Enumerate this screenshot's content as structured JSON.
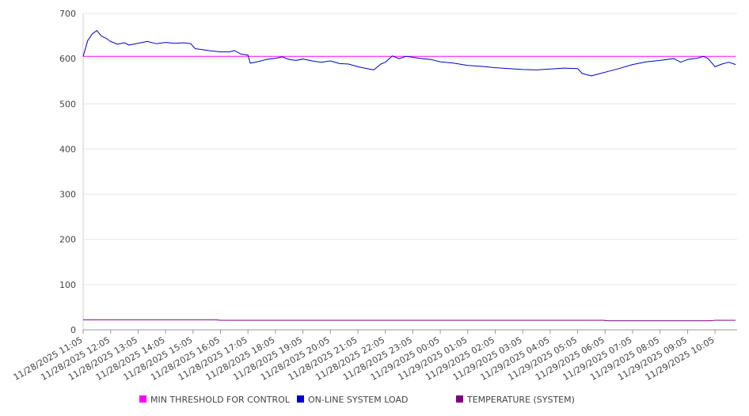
{
  "chart_data": {
    "type": "line",
    "title": "",
    "xlabel": "",
    "ylabel": "",
    "ylim": [
      0,
      700
    ],
    "yticks": [
      0,
      100,
      200,
      300,
      400,
      500,
      600,
      700
    ],
    "grid": true,
    "legend_position": "bottom",
    "x_tick_labels": [
      "11/28/2025 11:05",
      "11/28/2025 12:05",
      "11/28/2025 13:05",
      "11/28/2025 14:05",
      "11/28/2025 15:05",
      "11/28/2025 16:05",
      "11/28/2025 17:05",
      "11/28/2025 18:05",
      "11/28/2025 19:05",
      "11/28/2025 20:05",
      "11/28/2025 21:05",
      "11/28/2025 22:05",
      "11/28/2025 23:05",
      "11/29/2025 00:05",
      "11/29/2025 01:05",
      "11/29/2025 02:05",
      "11/29/2025 03:05",
      "11/29/2025 04:05",
      "11/29/2025 05:05",
      "11/29/2025 06:05",
      "11/29/2025 07:05",
      "11/29/2025 08:05",
      "11/29/2025 09:05",
      "11/29/2025 10:05"
    ],
    "series": [
      {
        "name": "MIN THRESHOLD FOR CONTROL",
        "color": "#ff00ff",
        "points": [
          [
            "11/28/2025 11:05",
            605
          ],
          [
            "11/29/2025 10:50",
            605
          ]
        ]
      },
      {
        "name": "ON-LINE SYSTEM LOAD",
        "color": "#0000cc",
        "points": [
          [
            "11/28/2025 11:05",
            605
          ],
          [
            "11/28/2025 11:15",
            640
          ],
          [
            "11/28/2025 11:25",
            655
          ],
          [
            "11/28/2025 11:35",
            662
          ],
          [
            "11/28/2025 11:45",
            650
          ],
          [
            "11/28/2025 11:55",
            645
          ],
          [
            "11/28/2025 12:05",
            638
          ],
          [
            "11/28/2025 12:20",
            632
          ],
          [
            "11/28/2025 12:35",
            635
          ],
          [
            "11/28/2025 12:45",
            630
          ],
          [
            "11/28/2025 13:05",
            634
          ],
          [
            "11/28/2025 13:25",
            638
          ],
          [
            "11/28/2025 13:45",
            633
          ],
          [
            "11/28/2025 14:05",
            636
          ],
          [
            "11/28/2025 14:25",
            634
          ],
          [
            "11/28/2025 14:45",
            635
          ],
          [
            "11/28/2025 15:00",
            633
          ],
          [
            "11/28/2025 15:10",
            622
          ],
          [
            "11/28/2025 15:25",
            620
          ],
          [
            "11/28/2025 15:45",
            617
          ],
          [
            "11/28/2025 16:05",
            615
          ],
          [
            "11/28/2025 16:25",
            615
          ],
          [
            "11/28/2025 16:35",
            618
          ],
          [
            "11/28/2025 16:50",
            610
          ],
          [
            "11/28/2025 17:05",
            608
          ],
          [
            "11/28/2025 17:10",
            590
          ],
          [
            "11/28/2025 17:25",
            593
          ],
          [
            "11/28/2025 17:45",
            598
          ],
          [
            "11/28/2025 18:05",
            601
          ],
          [
            "11/28/2025 18:20",
            604
          ],
          [
            "11/28/2025 18:35",
            598
          ],
          [
            "11/28/2025 18:50",
            596
          ],
          [
            "11/28/2025 19:05",
            599
          ],
          [
            "11/28/2025 19:25",
            595
          ],
          [
            "11/28/2025 19:45",
            592
          ],
          [
            "11/28/2025 20:05",
            595
          ],
          [
            "11/28/2025 20:25",
            589
          ],
          [
            "11/28/2025 20:45",
            588
          ],
          [
            "11/28/2025 21:05",
            582
          ],
          [
            "11/28/2025 21:25",
            578
          ],
          [
            "11/28/2025 21:40",
            575
          ],
          [
            "11/28/2025 21:55",
            588
          ],
          [
            "11/28/2025 22:05",
            592
          ],
          [
            "11/28/2025 22:20",
            606
          ],
          [
            "11/28/2025 22:35",
            600
          ],
          [
            "11/28/2025 22:50",
            605
          ],
          [
            "11/28/2025 23:05",
            603
          ],
          [
            "11/28/2025 23:25",
            600
          ],
          [
            "11/28/2025 23:45",
            598
          ],
          [
            "11/29/2025 00:05",
            593
          ],
          [
            "11/29/2025 00:35",
            590
          ],
          [
            "11/29/2025 01:05",
            585
          ],
          [
            "11/29/2025 01:35",
            583
          ],
          [
            "11/29/2025 02:05",
            580
          ],
          [
            "11/29/2025 02:35",
            578
          ],
          [
            "11/29/2025 03:05",
            576
          ],
          [
            "11/29/2025 03:35",
            575
          ],
          [
            "11/29/2025 04:05",
            577
          ],
          [
            "11/29/2025 04:35",
            579
          ],
          [
            "11/29/2025 05:05",
            578
          ],
          [
            "11/29/2025 05:15",
            567
          ],
          [
            "11/29/2025 05:35",
            562
          ],
          [
            "11/29/2025 05:50",
            566
          ],
          [
            "11/29/2025 06:05",
            570
          ],
          [
            "11/29/2025 06:35",
            578
          ],
          [
            "11/29/2025 07:05",
            587
          ],
          [
            "11/29/2025 07:35",
            593
          ],
          [
            "11/29/2025 08:05",
            596
          ],
          [
            "11/29/2025 08:35",
            600
          ],
          [
            "11/29/2025 08:50",
            592
          ],
          [
            "11/29/2025 09:05",
            598
          ],
          [
            "11/29/2025 09:25",
            601
          ],
          [
            "11/29/2025 09:40",
            605
          ],
          [
            "11/29/2025 09:50",
            600
          ],
          [
            "11/29/2025 10:05",
            582
          ],
          [
            "11/29/2025 10:20",
            588
          ],
          [
            "11/29/2025 10:35",
            592
          ],
          [
            "11/29/2025 10:50",
            587
          ]
        ]
      },
      {
        "name": "TEMPERATURE (SYSTEM)",
        "color": "#800080",
        "points": [
          [
            "11/28/2025 11:05",
            22
          ],
          [
            "11/28/2025 15:55",
            22
          ],
          [
            "11/28/2025 16:05",
            21
          ],
          [
            "11/29/2025 06:00",
            21
          ],
          [
            "11/29/2025 06:10",
            20
          ],
          [
            "11/29/2025 09:55",
            20
          ],
          [
            "11/29/2025 10:05",
            21
          ],
          [
            "11/29/2025 10:50",
            21
          ]
        ]
      }
    ]
  }
}
